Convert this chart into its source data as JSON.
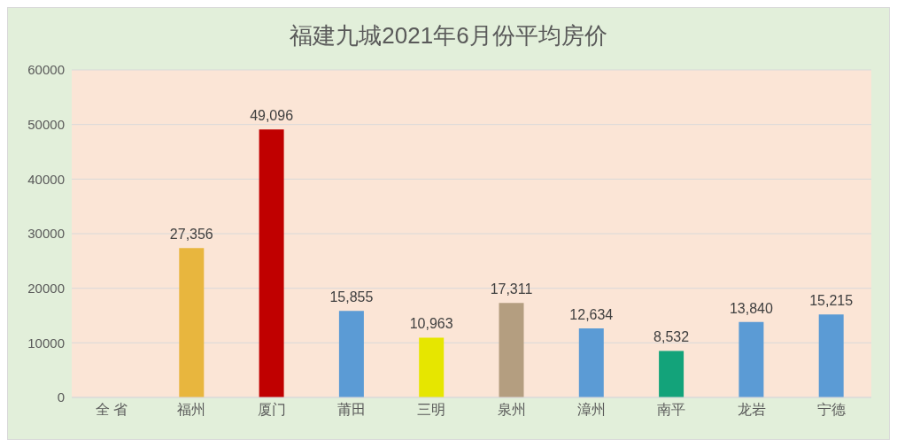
{
  "chart_data": {
    "type": "bar",
    "title": "福建九城2021年6月份平均房价",
    "categories": [
      "全 省",
      "福州",
      "厦门",
      "莆田",
      "三明",
      "泉州",
      "漳州",
      "南平",
      "龙岩",
      "宁德"
    ],
    "values": [
      null,
      27356,
      49096,
      15855,
      10963,
      17311,
      12634,
      8532,
      13840,
      15215
    ],
    "colors": [
      "#5b9bd5",
      "#e8b63e",
      "#c00000",
      "#5b9bd5",
      "#e6e600",
      "#b49e80",
      "#5b9bd5",
      "#13a37a",
      "#5b9bd5",
      "#5b9bd5"
    ],
    "value_labels": [
      null,
      "27,356",
      "49,096",
      "15,855",
      "10,963",
      "17,311",
      "12,634",
      "8,532",
      "13,840",
      "15,215"
    ],
    "ylim": [
      0,
      60000
    ],
    "yticks": [
      0,
      10000,
      20000,
      30000,
      40000,
      50000,
      60000
    ],
    "grid": "y"
  }
}
